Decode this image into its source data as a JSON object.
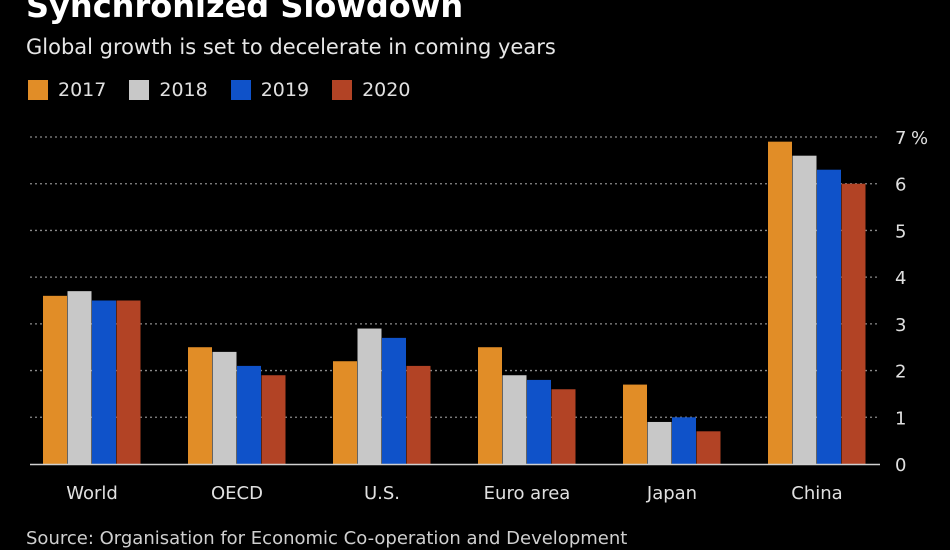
{
  "header": {
    "title": "Synchronized Slowdown",
    "subtitle": "Global growth is set to decelerate in coming years"
  },
  "footer": {
    "source": "Source: Organisation for Economic Co-operation and Development"
  },
  "colors": {
    "background": "#000000",
    "2017": "#e18d27",
    "2018": "#c8c8c8",
    "2019": "#0f52c9",
    "2020": "#b24325",
    "grid": "#8a8a8a"
  },
  "chart_data": {
    "type": "bar",
    "title": "Synchronized Slowdown",
    "subtitle": "Global growth is set to decelerate in coming years",
    "xlabel": "",
    "ylabel": "%",
    "ylim": [
      0,
      7
    ],
    "yticks": [
      0,
      1,
      2,
      3,
      4,
      5,
      6,
      7
    ],
    "unit": "%",
    "grid": true,
    "legend": "top-left",
    "categories": [
      "World",
      "OECD",
      "U.S.",
      "Euro area",
      "Japan",
      "China"
    ],
    "series": [
      {
        "name": "2017",
        "color": "#e18d27",
        "values": [
          3.6,
          2.5,
          2.2,
          2.5,
          1.7,
          6.9
        ]
      },
      {
        "name": "2018",
        "color": "#c8c8c8",
        "values": [
          3.7,
          2.4,
          2.9,
          1.9,
          0.9,
          6.6
        ]
      },
      {
        "name": "2019",
        "color": "#0f52c9",
        "values": [
          3.5,
          2.1,
          2.7,
          1.8,
          1.0,
          6.3
        ]
      },
      {
        "name": "2020",
        "color": "#b24325",
        "values": [
          3.5,
          1.9,
          2.1,
          1.6,
          0.7,
          6.0
        ]
      }
    ]
  }
}
